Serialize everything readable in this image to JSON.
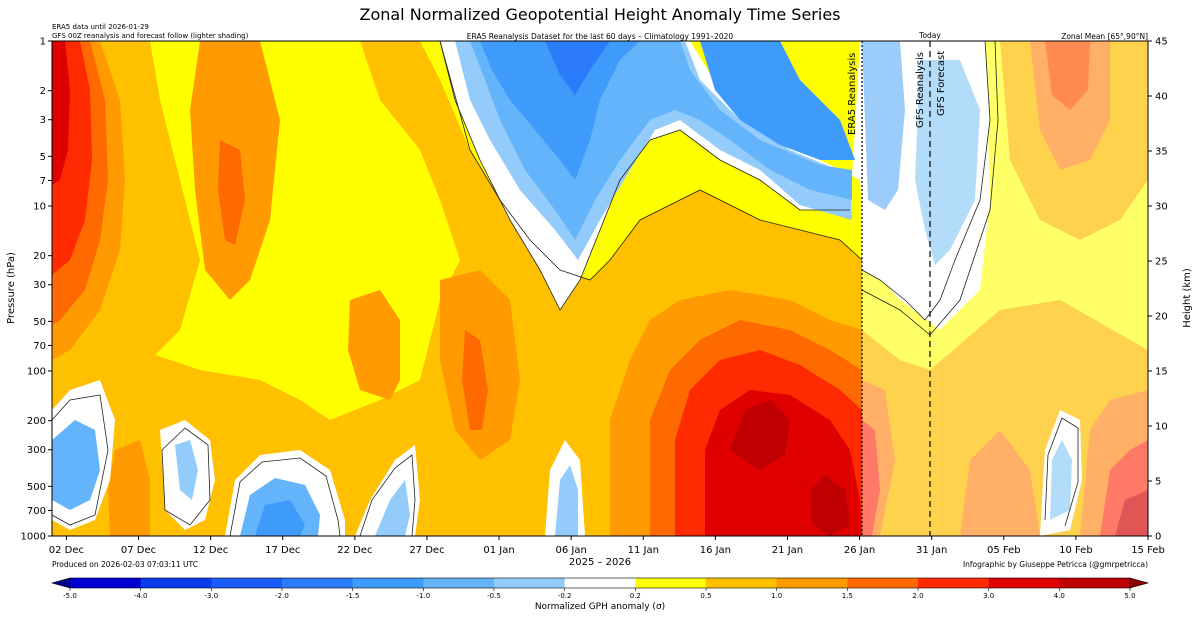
{
  "header": {
    "title": "Zonal Normalized Geopotential Height Anomaly Time Series",
    "note_line1": "ERA5 data until 2026-01-29",
    "note_line2": "GFS 00Z reanalysis and forecast follow (lighter shading)",
    "subtitle": "ERA5 Reanalysis Dataset for the last 60 days – Climatology 1991–2020",
    "region": "Zonal Mean [65°,90°N]"
  },
  "footer": {
    "produced": "Produced on 2026-02-03 07:03:11 UTC",
    "credit": "Infographic by Giuseppe Petricca (@gmrpetricca)"
  },
  "chart_data": {
    "type": "heatmap",
    "title": "Zonal Normalized Geopotential Height Anomaly Time Series",
    "xlabel": "2025 – 2026",
    "ylabel": "Pressure (hPa)",
    "y2label": "Height (km)",
    "x_tick_labels": [
      "02 Dec",
      "07 Dec",
      "12 Dec",
      "17 Dec",
      "22 Dec",
      "27 Dec",
      "01 Jan",
      "06 Jan",
      "11 Jan",
      "16 Jan",
      "21 Jan",
      "26 Jan",
      "31 Jan",
      "05 Feb",
      "10 Feb",
      "15 Feb"
    ],
    "y_scale": "log",
    "y_inverted": true,
    "y_ticks": [
      1,
      2,
      3,
      5,
      7,
      10,
      20,
      30,
      50,
      70,
      100,
      200,
      300,
      500,
      700,
      1000
    ],
    "y_range": [
      1,
      1000
    ],
    "y2_ticks": [
      0,
      5,
      10,
      15,
      20,
      25,
      30,
      35,
      40,
      45
    ],
    "y2_range": [
      0,
      45
    ],
    "markers": [
      {
        "date": "29 Jan",
        "label": "ERA5 Reanalysis",
        "style": "dotted"
      },
      {
        "date": "03 Feb",
        "label": "GFS Reanalysis",
        "style": "dashed",
        "top_label": "Today"
      },
      {
        "date": "03 Feb",
        "label": "GFS Forecast",
        "style": "dashed"
      }
    ],
    "colorbar": {
      "label": "Normalized GPH anomaly (σ)",
      "levels": [
        -5.0,
        -4.0,
        -3.0,
        -2.0,
        -1.5,
        -1.0,
        -0.5,
        -0.2,
        0.2,
        0.5,
        1.0,
        1.5,
        2.0,
        3.0,
        4.0,
        5.0
      ],
      "tick_labels": [
        "-5.0",
        "-4.0",
        "-3.0",
        "-2.0",
        "-1.5",
        "-1.0",
        "-0.5",
        "-0.2",
        "0.2",
        "0.5",
        "1.0",
        "1.5",
        "2.0",
        "3.0",
        "4.0",
        "5.0"
      ],
      "colors": [
        "#0000d4",
        "#0a3cee",
        "#1b5bf8",
        "#2b7cfb",
        "#3f9bfb",
        "#64b4fb",
        "#93cbfa",
        "#ffffff",
        "#ffff00",
        "#ffc000",
        "#ff9a00",
        "#ff6a00",
        "#ff2a00",
        "#e00000",
        "#c00000"
      ],
      "under_color": "#00008b",
      "over_color": "#8b0000"
    },
    "grid": false
  }
}
